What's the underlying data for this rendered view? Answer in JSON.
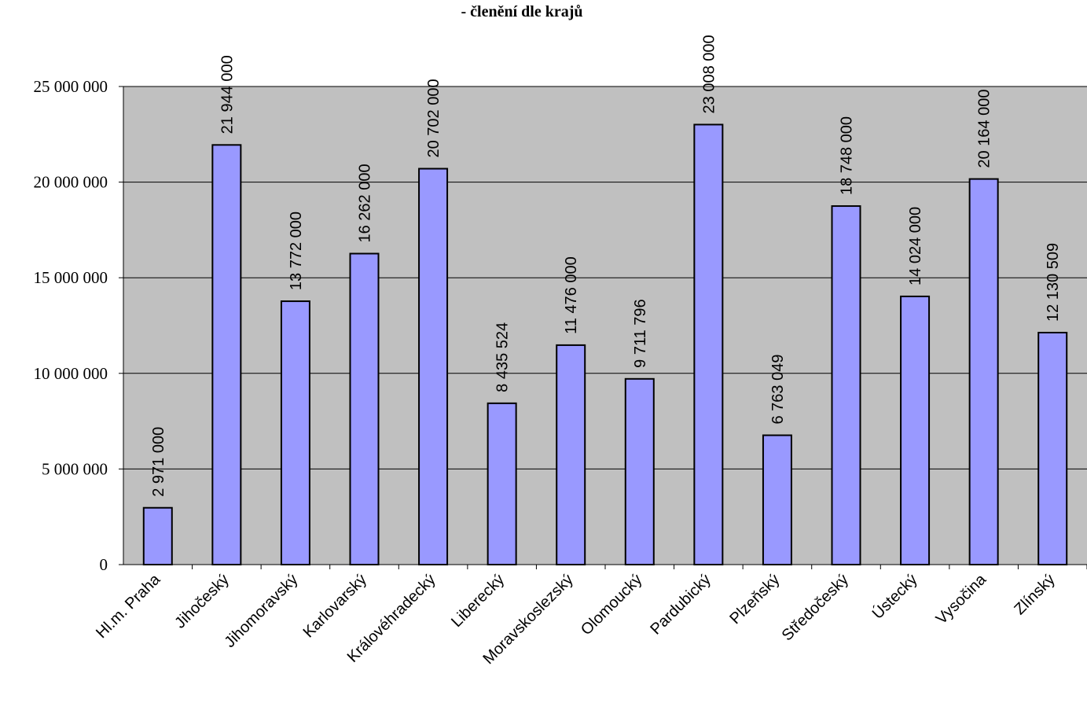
{
  "chart_data": {
    "type": "bar",
    "title": "- členění dle krajů",
    "xlabel": "",
    "ylabel": "",
    "categories": [
      "Hl.m. Praha",
      "Jihočeský",
      "Jihomoravský",
      "Karlovarský",
      "Královéhradecký",
      "Liberecký",
      "Moravskoslezský",
      "Olomoucký",
      "Pardubický",
      "Plzeňský",
      "Středočeský",
      "Ústecký",
      "Vysočina",
      "Zlínský"
    ],
    "values": [
      2971000,
      21944000,
      13772000,
      16262000,
      20702000,
      8435524,
      11476000,
      9711796,
      23008000,
      6763049,
      18748000,
      14024000,
      20164000,
      12130509
    ],
    "data_labels": [
      "2 971 000",
      "21 944 000",
      "13 772 000",
      "16 262 000",
      "20 702 000",
      "8 435 524",
      "11 476 000",
      "9 711 796",
      "23 008 000",
      "6 763 049",
      "18 748 000",
      "14 024 000",
      "20 164 000",
      "12 130 509"
    ],
    "yticks": [
      0,
      5000000,
      10000000,
      15000000,
      20000000,
      25000000
    ],
    "ytick_labels": [
      "0",
      "5 000 000",
      "10 000 000",
      "15 000 000",
      "20 000 000",
      "25 000 000"
    ],
    "ylim": [
      0,
      25000000
    ],
    "grid": true,
    "legend": "none",
    "colors": {
      "bar_fill": "#9999ff",
      "bar_stroke": "#000000",
      "plot_background": "#c0c0c0",
      "gridline": "#000000"
    }
  }
}
